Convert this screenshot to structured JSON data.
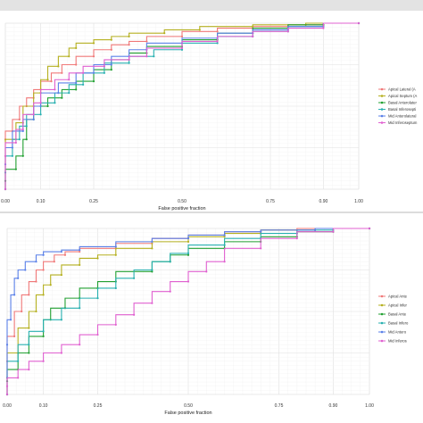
{
  "chart_data": [
    {
      "type": "line",
      "xlabel": "False positive fraction",
      "ylabel": "",
      "xlim": [
        0,
        1
      ],
      "ylim": [
        0,
        1
      ],
      "x_ticks": [
        "0.00",
        "0.10",
        "0.25",
        "0.50",
        "0.75",
        "0.90",
        "1.00"
      ],
      "x_tick_values": [
        0,
        0.1,
        0.25,
        0.5,
        0.75,
        0.9,
        1
      ],
      "grid": true,
      "legend_position": "right",
      "series": [
        {
          "name": "Apical Lateral (A",
          "color": "#f07878",
          "points": [
            [
              0,
              0
            ],
            [
              0,
              0.3
            ],
            [
              0.02,
              0.35
            ],
            [
              0.04,
              0.42
            ],
            [
              0.06,
              0.5
            ],
            [
              0.08,
              0.55
            ],
            [
              0.1,
              0.6
            ],
            [
              0.13,
              0.65
            ],
            [
              0.16,
              0.7
            ],
            [
              0.2,
              0.75
            ],
            [
              0.25,
              0.8
            ],
            [
              0.3,
              0.84
            ],
            [
              0.35,
              0.87
            ],
            [
              0.4,
              0.89
            ],
            [
              0.5,
              0.92
            ],
            [
              0.6,
              0.95
            ],
            [
              0.7,
              0.97
            ],
            [
              0.8,
              0.98
            ],
            [
              0.9,
              0.99
            ],
            [
              1,
              1
            ]
          ]
        },
        {
          "name": "Apical Septum (A",
          "color": "#b5b020",
          "points": [
            [
              0,
              0
            ],
            [
              0,
              0.2
            ],
            [
              0.03,
              0.3
            ],
            [
              0.05,
              0.4
            ],
            [
              0.08,
              0.5
            ],
            [
              0.1,
              0.58
            ],
            [
              0.12,
              0.66
            ],
            [
              0.15,
              0.74
            ],
            [
              0.18,
              0.8
            ],
            [
              0.2,
              0.85
            ],
            [
              0.25,
              0.88
            ],
            [
              0.3,
              0.9
            ],
            [
              0.35,
              0.92
            ],
            [
              0.45,
              0.94
            ],
            [
              0.55,
              0.96
            ],
            [
              0.7,
              0.98
            ],
            [
              0.85,
              0.99
            ],
            [
              1,
              1
            ]
          ]
        },
        {
          "name": "Basal Anterolater",
          "color": "#22a032",
          "points": [
            [
              0,
              0
            ],
            [
              0,
              0.05
            ],
            [
              0.03,
              0.12
            ],
            [
              0.05,
              0.2
            ],
            [
              0.06,
              0.3
            ],
            [
              0.08,
              0.42
            ],
            [
              0.12,
              0.5
            ],
            [
              0.16,
              0.55
            ],
            [
              0.2,
              0.6
            ],
            [
              0.25,
              0.65
            ],
            [
              0.3,
              0.72
            ],
            [
              0.35,
              0.78
            ],
            [
              0.4,
              0.82
            ],
            [
              0.5,
              0.86
            ],
            [
              0.6,
              0.9
            ],
            [
              0.7,
              0.94
            ],
            [
              0.8,
              0.97
            ],
            [
              0.9,
              0.99
            ],
            [
              1,
              1
            ]
          ]
        },
        {
          "name": "Basal Inferosepti",
          "color": "#28b0b0",
          "points": [
            [
              0,
              0
            ],
            [
              0,
              0.1
            ],
            [
              0.02,
              0.2
            ],
            [
              0.04,
              0.3
            ],
            [
              0.06,
              0.38
            ],
            [
              0.1,
              0.45
            ],
            [
              0.14,
              0.52
            ],
            [
              0.18,
              0.58
            ],
            [
              0.22,
              0.63
            ],
            [
              0.28,
              0.7
            ],
            [
              0.35,
              0.76
            ],
            [
              0.42,
              0.8
            ],
            [
              0.5,
              0.84
            ],
            [
              0.6,
              0.88
            ],
            [
              0.7,
              0.92
            ],
            [
              0.8,
              0.95
            ],
            [
              0.9,
              0.98
            ],
            [
              1,
              1
            ]
          ]
        },
        {
          "name": "Mid Anterolateral",
          "color": "#5a80e8",
          "points": [
            [
              0,
              0
            ],
            [
              0,
              0.15
            ],
            [
              0.02,
              0.25
            ],
            [
              0.05,
              0.35
            ],
            [
              0.08,
              0.42
            ],
            [
              0.1,
              0.5
            ],
            [
              0.15,
              0.58
            ],
            [
              0.2,
              0.64
            ],
            [
              0.25,
              0.7
            ],
            [
              0.3,
              0.75
            ],
            [
              0.35,
              0.8
            ],
            [
              0.4,
              0.84
            ],
            [
              0.5,
              0.88
            ],
            [
              0.6,
              0.91
            ],
            [
              0.7,
              0.94
            ],
            [
              0.8,
              0.96
            ],
            [
              0.9,
              0.98
            ],
            [
              1,
              1
            ]
          ]
        },
        {
          "name": "Mid Inferoseptum",
          "color": "#e060d0",
          "points": [
            [
              0,
              0
            ],
            [
              0,
              0.2
            ],
            [
              0.03,
              0.28
            ],
            [
              0.05,
              0.36
            ],
            [
              0.08,
              0.45
            ],
            [
              0.1,
              0.52
            ],
            [
              0.14,
              0.6
            ],
            [
              0.18,
              0.66
            ],
            [
              0.22,
              0.7
            ],
            [
              0.28,
              0.74
            ],
            [
              0.35,
              0.78
            ],
            [
              0.4,
              0.8
            ],
            [
              0.5,
              0.85
            ],
            [
              0.6,
              0.89
            ],
            [
              0.7,
              0.92
            ],
            [
              0.8,
              0.95
            ],
            [
              0.9,
              0.97
            ],
            [
              1,
              1
            ]
          ]
        }
      ]
    },
    {
      "type": "line",
      "xlabel": "False positive fraction",
      "ylabel": "",
      "xlim": [
        0,
        1
      ],
      "ylim": [
        0,
        1
      ],
      "x_ticks": [
        "0.00",
        "0.10",
        "0.25",
        "0.50",
        "0.75",
        "0.90",
        "1.00"
      ],
      "x_tick_values": [
        0,
        0.1,
        0.25,
        0.5,
        0.75,
        0.9,
        1
      ],
      "grid": true,
      "legend_position": "right",
      "series": [
        {
          "name": "Apical Ante",
          "color": "#f07878",
          "points": [
            [
              0,
              0
            ],
            [
              0,
              0.2
            ],
            [
              0.02,
              0.35
            ],
            [
              0.04,
              0.5
            ],
            [
              0.06,
              0.6
            ],
            [
              0.08,
              0.68
            ],
            [
              0.1,
              0.75
            ],
            [
              0.13,
              0.8
            ],
            [
              0.16,
              0.84
            ],
            [
              0.2,
              0.86
            ],
            [
              0.3,
              0.88
            ],
            [
              0.4,
              0.91
            ],
            [
              0.5,
              0.94
            ],
            [
              0.6,
              0.96
            ],
            [
              0.7,
              0.98
            ],
            [
              0.8,
              0.99
            ],
            [
              1,
              1
            ]
          ]
        },
        {
          "name": "Apical Infer",
          "color": "#b5b020",
          "points": [
            [
              0,
              0
            ],
            [
              0,
              0.1
            ],
            [
              0.03,
              0.25
            ],
            [
              0.06,
              0.4
            ],
            [
              0.08,
              0.5
            ],
            [
              0.1,
              0.6
            ],
            [
              0.12,
              0.66
            ],
            [
              0.15,
              0.72
            ],
            [
              0.2,
              0.78
            ],
            [
              0.25,
              0.82
            ],
            [
              0.3,
              0.84
            ],
            [
              0.4,
              0.88
            ],
            [
              0.5,
              0.92
            ],
            [
              0.6,
              0.95
            ],
            [
              0.7,
              0.97
            ],
            [
              0.85,
              0.99
            ],
            [
              1,
              1
            ]
          ]
        },
        {
          "name": "Basal Ante",
          "color": "#22a032",
          "points": [
            [
              0,
              0
            ],
            [
              0,
              0.08
            ],
            [
              0.03,
              0.15
            ],
            [
              0.06,
              0.25
            ],
            [
              0.1,
              0.35
            ],
            [
              0.12,
              0.45
            ],
            [
              0.16,
              0.52
            ],
            [
              0.2,
              0.58
            ],
            [
              0.25,
              0.64
            ],
            [
              0.3,
              0.68
            ],
            [
              0.4,
              0.74
            ],
            [
              0.45,
              0.8
            ],
            [
              0.5,
              0.84
            ],
            [
              0.6,
              0.88
            ],
            [
              0.7,
              0.92
            ],
            [
              0.8,
              0.95
            ],
            [
              0.9,
              0.98
            ],
            [
              1,
              1
            ]
          ]
        },
        {
          "name": "Basal Infero",
          "color": "#28b0b0",
          "points": [
            [
              0,
              0
            ],
            [
              0,
              0.1
            ],
            [
              0.03,
              0.2
            ],
            [
              0.06,
              0.3
            ],
            [
              0.1,
              0.38
            ],
            [
              0.15,
              0.45
            ],
            [
              0.2,
              0.52
            ],
            [
              0.25,
              0.58
            ],
            [
              0.3,
              0.64
            ],
            [
              0.35,
              0.7
            ],
            [
              0.4,
              0.75
            ],
            [
              0.45,
              0.8
            ],
            [
              0.5,
              0.85
            ],
            [
              0.6,
              0.9
            ],
            [
              0.7,
              0.94
            ],
            [
              0.8,
              0.97
            ],
            [
              0.9,
              0.99
            ],
            [
              1,
              1
            ]
          ]
        },
        {
          "name": "Mid Antero",
          "color": "#5a80e8",
          "points": [
            [
              0,
              0
            ],
            [
              0,
              0.3
            ],
            [
              0.01,
              0.45
            ],
            [
              0.02,
              0.6
            ],
            [
              0.03,
              0.7
            ],
            [
              0.05,
              0.75
            ],
            [
              0.08,
              0.8
            ],
            [
              0.1,
              0.84
            ],
            [
              0.15,
              0.86
            ],
            [
              0.2,
              0.87
            ],
            [
              0.3,
              0.89
            ],
            [
              0.4,
              0.92
            ],
            [
              0.5,
              0.94
            ],
            [
              0.6,
              0.96
            ],
            [
              0.7,
              0.98
            ],
            [
              0.85,
              0.99
            ],
            [
              1,
              1
            ]
          ]
        },
        {
          "name": "Mid Inferos",
          "color": "#e060d0",
          "points": [
            [
              0,
              0
            ],
            [
              0,
              0.05
            ],
            [
              0.03,
              0.1
            ],
            [
              0.06,
              0.15
            ],
            [
              0.1,
              0.2
            ],
            [
              0.15,
              0.25
            ],
            [
              0.2,
              0.3
            ],
            [
              0.25,
              0.36
            ],
            [
              0.3,
              0.42
            ],
            [
              0.35,
              0.48
            ],
            [
              0.4,
              0.55
            ],
            [
              0.45,
              0.62
            ],
            [
              0.5,
              0.68
            ],
            [
              0.55,
              0.74
            ],
            [
              0.6,
              0.8
            ],
            [
              0.7,
              0.88
            ],
            [
              0.8,
              0.94
            ],
            [
              0.9,
              0.98
            ],
            [
              1,
              1
            ]
          ]
        }
      ]
    }
  ]
}
